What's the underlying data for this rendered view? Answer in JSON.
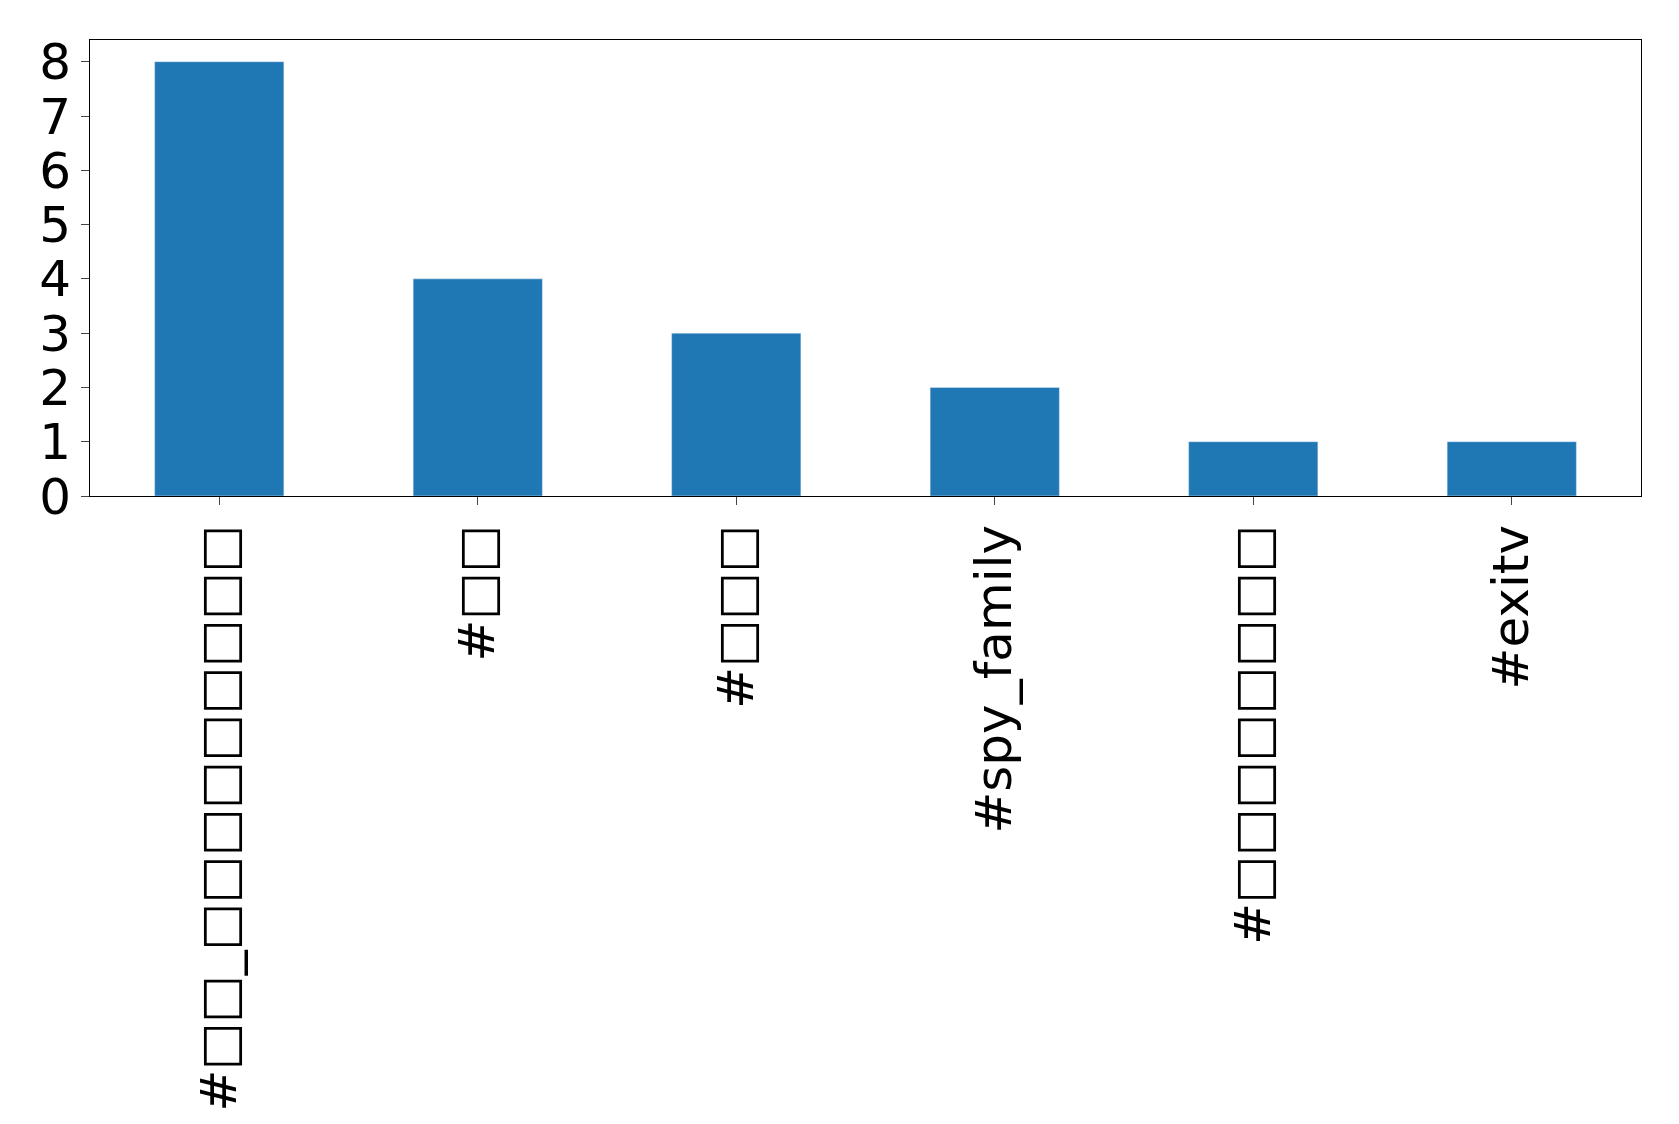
{
  "chart_data": {
    "type": "bar",
    "categories": [
      "#□□_□□□□□□□□□",
      "#□□",
      "#□□□",
      "#spy_family",
      "#□□□□□□□□",
      "#exitv"
    ],
    "values": [
      8,
      4,
      3,
      2,
      1,
      1
    ],
    "color": "#1f77b4",
    "ylim": [
      0,
      8.4
    ],
    "yticks": [
      0,
      1,
      2,
      3,
      4,
      5,
      6,
      7,
      8
    ]
  }
}
